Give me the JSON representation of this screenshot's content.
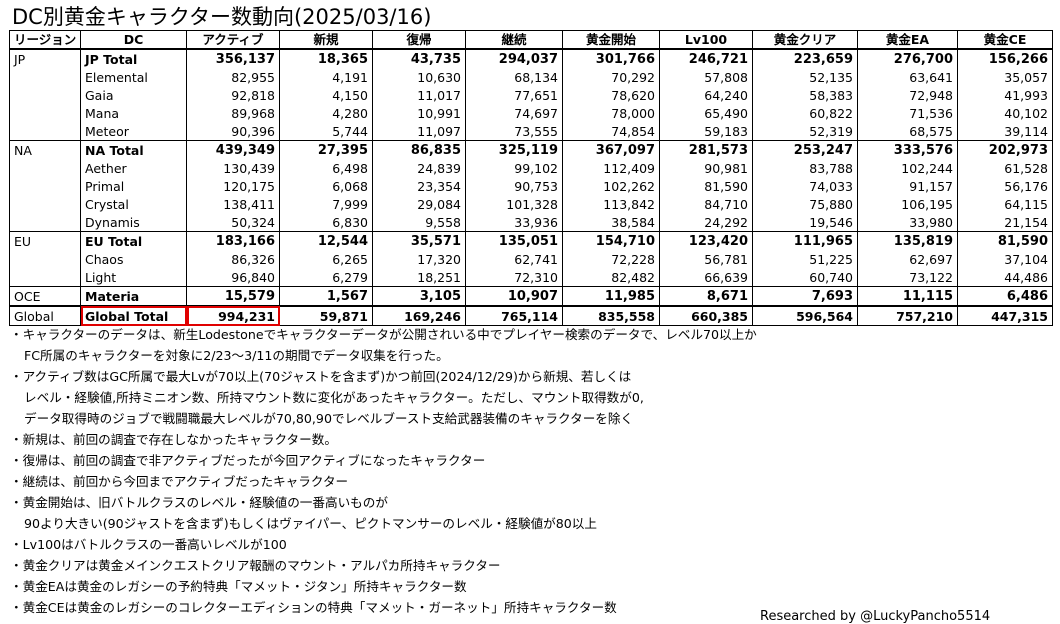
{
  "title": "DC別黄金キャラクター数動向(2025/03/16)",
  "headers": [
    "リージョン",
    "DC",
    "アクティブ",
    "新規",
    "復帰",
    "継続",
    "黄金開始",
    "Lv100",
    "黄金クリア",
    "黄金EA",
    "黄金CE"
  ],
  "rows": [
    {
      "region": "JP",
      "dc": "JP Total",
      "total": true,
      "v": [
        "356,137",
        "18,365",
        "43,735",
        "294,037",
        "301,766",
        "246,721",
        "223,659",
        "276,700",
        "156,266"
      ]
    },
    {
      "region": "",
      "dc": "Elemental",
      "v": [
        "82,955",
        "4,191",
        "10,630",
        "68,134",
        "70,292",
        "57,808",
        "52,135",
        "63,641",
        "35,057"
      ]
    },
    {
      "region": "",
      "dc": "Gaia",
      "v": [
        "92,818",
        "4,150",
        "11,017",
        "77,651",
        "78,620",
        "64,240",
        "58,383",
        "72,948",
        "41,993"
      ]
    },
    {
      "region": "",
      "dc": "Mana",
      "v": [
        "89,968",
        "4,280",
        "10,991",
        "74,697",
        "78,000",
        "65,490",
        "60,822",
        "71,536",
        "40,102"
      ]
    },
    {
      "region": "",
      "dc": "Meteor",
      "v": [
        "90,396",
        "5,744",
        "11,097",
        "73,555",
        "74,854",
        "59,183",
        "52,319",
        "68,575",
        "39,114"
      ]
    },
    {
      "region": "NA",
      "dc": "NA Total",
      "total": true,
      "v": [
        "439,349",
        "27,395",
        "86,835",
        "325,119",
        "367,097",
        "281,573",
        "253,247",
        "333,576",
        "202,973"
      ]
    },
    {
      "region": "",
      "dc": "Aether",
      "v": [
        "130,439",
        "6,498",
        "24,839",
        "99,102",
        "112,409",
        "90,981",
        "83,788",
        "102,244",
        "61,528"
      ]
    },
    {
      "region": "",
      "dc": "Primal",
      "v": [
        "120,175",
        "6,068",
        "23,354",
        "90,753",
        "102,262",
        "81,590",
        "74,033",
        "91,157",
        "56,176"
      ]
    },
    {
      "region": "",
      "dc": "Crystal",
      "v": [
        "138,411",
        "7,999",
        "29,084",
        "101,328",
        "113,842",
        "84,710",
        "75,880",
        "106,195",
        "64,115"
      ]
    },
    {
      "region": "",
      "dc": "Dynamis",
      "v": [
        "50,324",
        "6,830",
        "9,558",
        "33,936",
        "38,584",
        "24,292",
        "19,546",
        "33,980",
        "21,154"
      ]
    },
    {
      "region": "EU",
      "dc": "EU Total",
      "total": true,
      "v": [
        "183,166",
        "12,544",
        "35,571",
        "135,051",
        "154,710",
        "123,420",
        "111,965",
        "135,819",
        "81,590"
      ]
    },
    {
      "region": "",
      "dc": "Chaos",
      "v": [
        "86,326",
        "6,265",
        "17,320",
        "62,741",
        "72,228",
        "56,781",
        "51,225",
        "62,697",
        "37,104"
      ]
    },
    {
      "region": "",
      "dc": "Light",
      "v": [
        "96,840",
        "6,279",
        "18,251",
        "72,310",
        "82,482",
        "66,639",
        "60,740",
        "73,122",
        "44,486"
      ]
    },
    {
      "region": "OCE",
      "dc": "Materia",
      "total": true,
      "v": [
        "15,579",
        "1,567",
        "3,105",
        "10,907",
        "11,985",
        "8,671",
        "7,693",
        "11,115",
        "6,486"
      ]
    },
    {
      "region": "Global",
      "dc": "Global Total",
      "global": true,
      "v": [
        "994,231",
        "59,871",
        "169,246",
        "765,114",
        "835,558",
        "660,385",
        "596,564",
        "757,210",
        "447,315"
      ]
    }
  ],
  "notes": [
    "・キャラクターのデータは、新生Lodestoneでキャラクターデータが公開されいる中でプレイヤー検索のデータで、レベル70以上か",
    "FC所属のキャラクターを対象に2/23～3/11の期間でデータ収集を行った。",
    "・アクティブ数はGC所属で最大Lvが70以上(70ジャストを含まず)かつ前回(2024/12/29)から新規、若しくは",
    "レベル・経験値,所持ミニオン数、所持マウント数に変化があったキャラクター。ただし、マウント取得数が0,",
    "データ取得時のジョブで戦闘職最大レベルが70,80,90でレベルブースト支給武器装備のキャラクターを除く",
    "・新規は、前回の調査で存在しなかったキャラクター数。",
    "・復帰は、前回の調査で非アクティブだったが今回アクティブになったキャラクター",
    "・継続は、前回から今回までアクティブだったキャラクター",
    "・黄金開始は、旧バトルクラスのレベル・経験値の一番高いものが",
    "90より大きい(90ジャストを含まず)もしくはヴァイパー、ピクトマンサーのレベル・経験値が80以上",
    "・Lv100はバトルクラスの一番高いレベルが100",
    "・黄金クリアは黄金メインクエストクリア報酬のマウント・アルパカ所持キャラクター",
    "・黄金EAは黄金のレガシーの予約特典「マメット・ジタン」所持キャラクター数",
    "・黄金CEは黄金のレガシーのコレクターエディションの特典「マメット・ガーネット」所持キャラクター数"
  ],
  "credit": "Researched by @LuckyPancho5514"
}
